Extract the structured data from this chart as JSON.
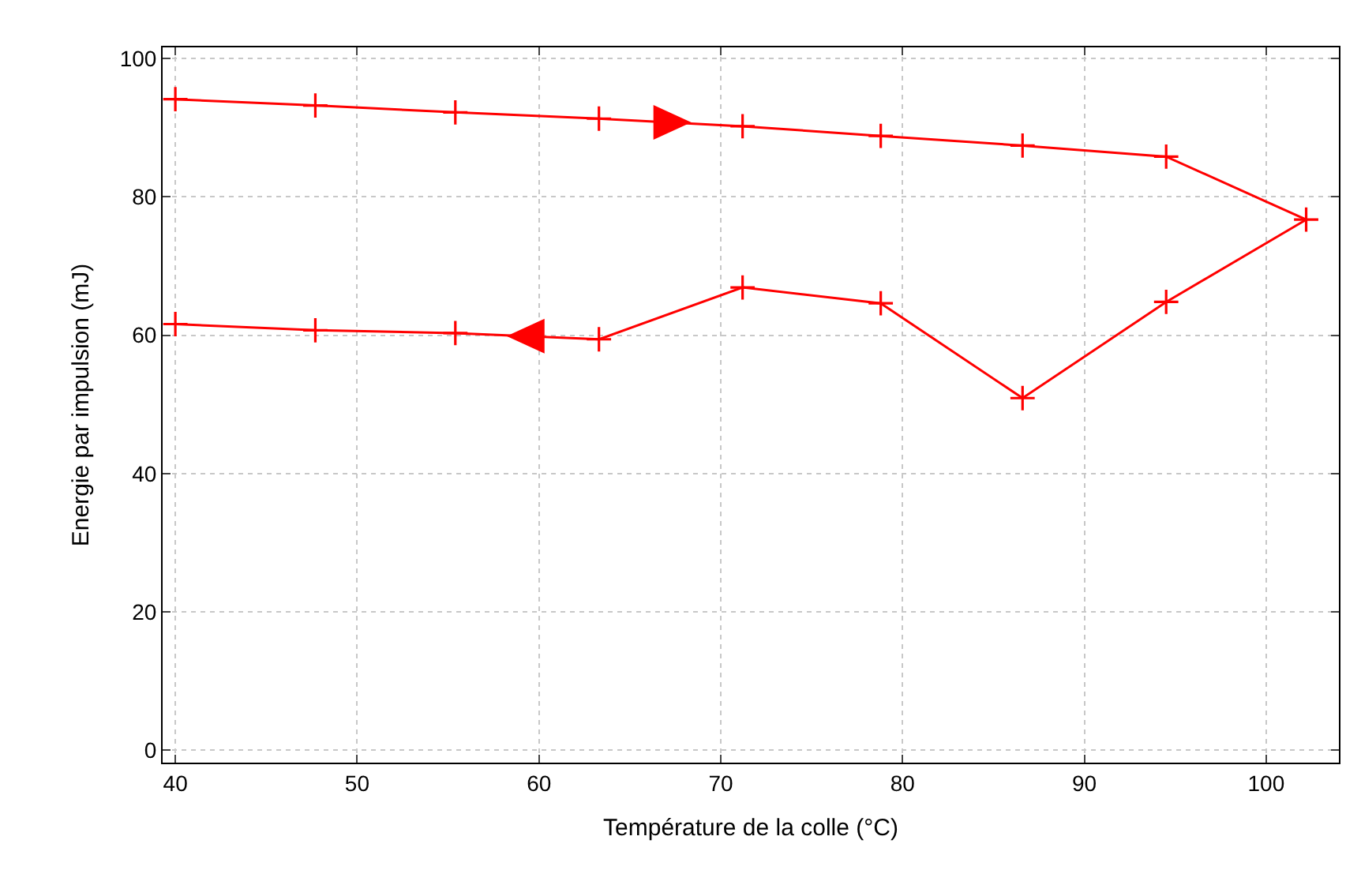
{
  "chart_data": {
    "type": "line",
    "xlabel": "Température de la colle (°C)",
    "ylabel": "Energie par impulsion (mJ)",
    "series": [
      {
        "color": "#ff0000",
        "x": [
          40,
          47.7,
          55.4,
          63.3,
          71.2,
          78.8,
          86.6,
          94.5,
          102.2,
          94.5,
          86.6,
          78.8,
          71.2,
          63.3,
          55.4,
          47.7,
          40
        ],
        "values": [
          94.1,
          93.2,
          92.2,
          91.3,
          90.2,
          88.8,
          87.4,
          85.8,
          76.7,
          64.8,
          50.9,
          64.6,
          66.9,
          59.4,
          60.3,
          60.7,
          61.6
        ]
      }
    ],
    "xlim": [
      39.3,
      104
    ],
    "xticks": [
      40,
      50,
      60,
      70,
      80,
      90,
      100
    ],
    "ylim": [
      -1.8,
      101.6
    ],
    "yticks": [
      0,
      20,
      40,
      60,
      80,
      100
    ],
    "grid": true,
    "marker": "cross",
    "line_style": "solid"
  }
}
